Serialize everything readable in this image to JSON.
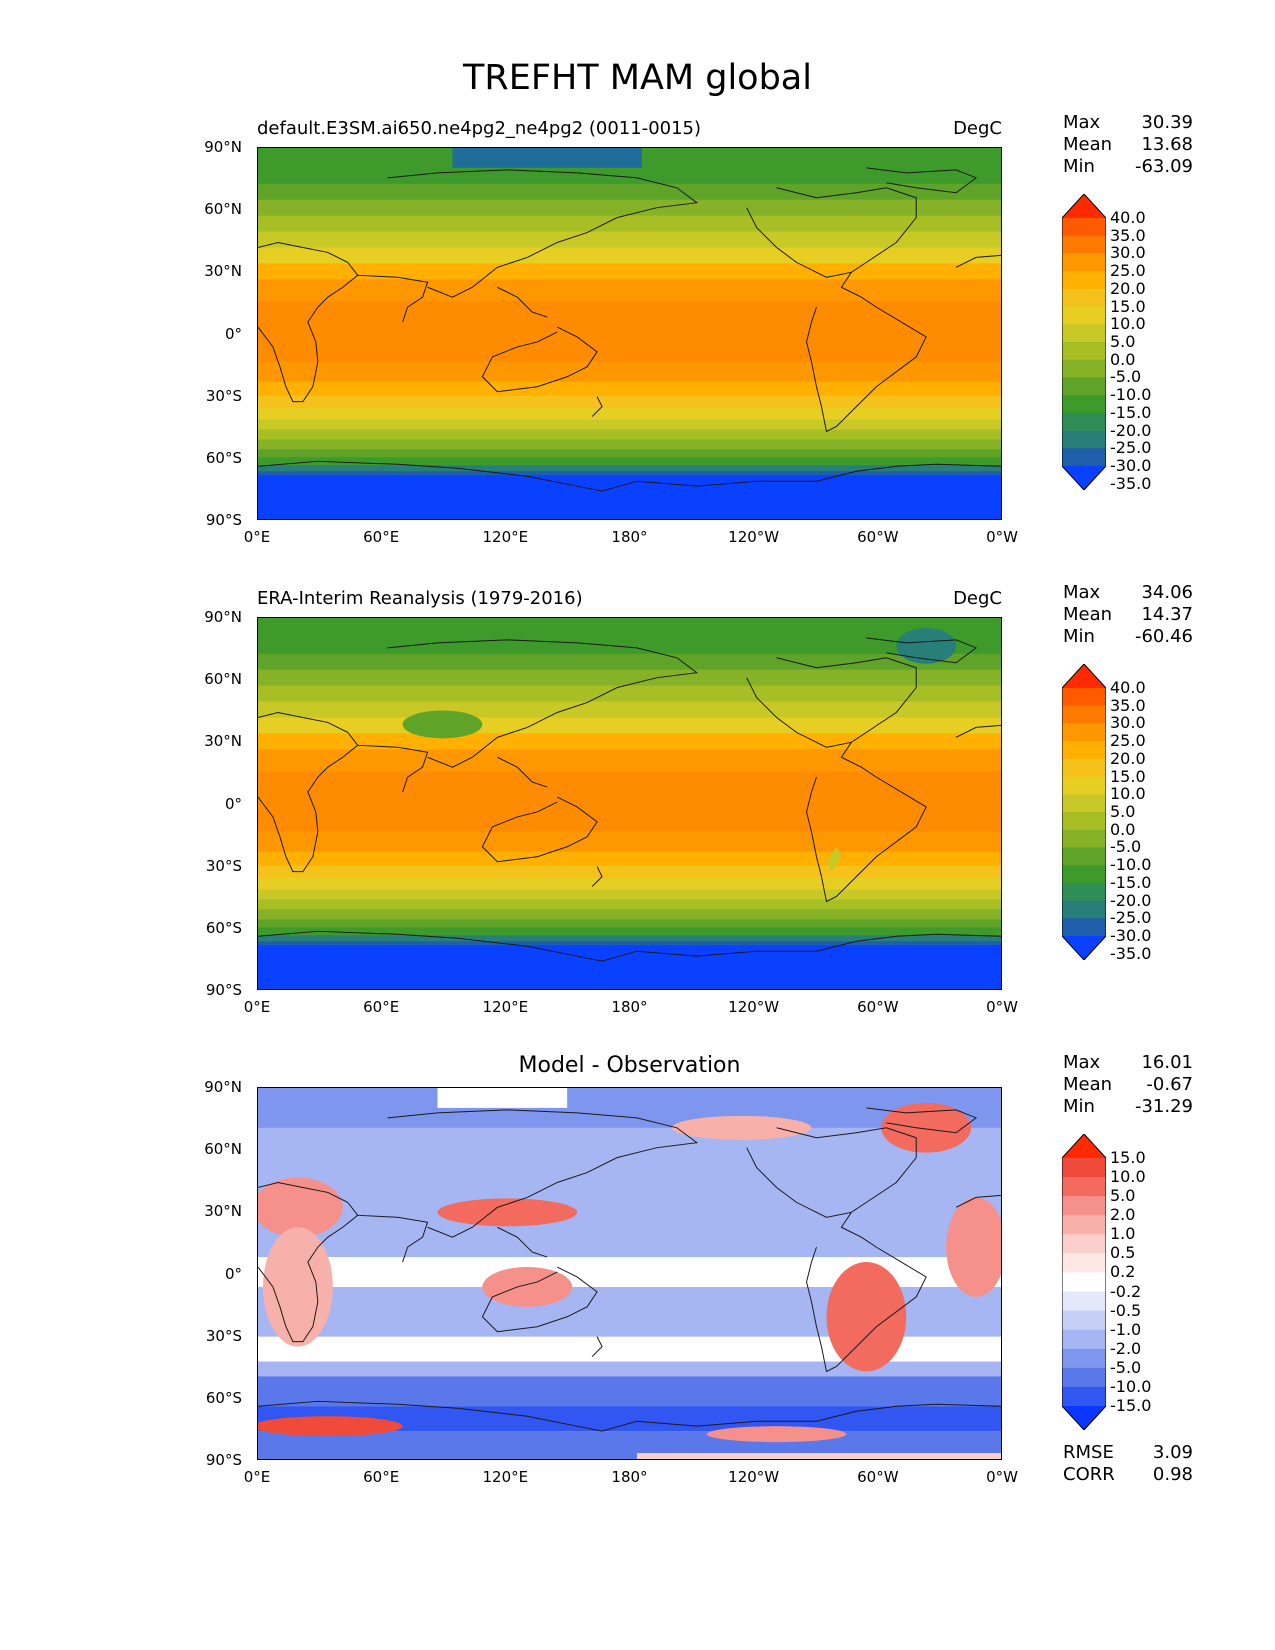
{
  "title": "TREFHT MAM global",
  "axes": {
    "lat_ticks": [
      "90°N",
      "60°N",
      "30°N",
      "0°",
      "30°S",
      "60°S",
      "90°S"
    ],
    "lon_ticks": [
      "0°E",
      "60°E",
      "120°E",
      "180°",
      "120°W",
      "60°W",
      "0°W"
    ]
  },
  "panels": [
    {
      "title_left": "default.E3SM.ai650.ne4pg2_ne4pg2 (0011-0015)",
      "units": "DegC",
      "stats": {
        "max_label": "Max",
        "max": "30.39",
        "mean_label": "Mean",
        "mean": "13.68",
        "min_label": "Min",
        "min": "-63.09"
      },
      "colorbar": {
        "labels": [
          "40.0",
          "35.0",
          "30.0",
          "25.0",
          "20.0",
          "15.0",
          "10.0",
          "5.0",
          "0.0",
          "-5.0",
          "-10.0",
          "-15.0",
          "-20.0",
          "-25.0",
          "-30.0",
          "-35.0"
        ],
        "colors": [
          "#ff2a00",
          "#ff5a00",
          "#ff7a00",
          "#ff9800",
          "#ffb000",
          "#f5c21b",
          "#e6ce23",
          "#c8c827",
          "#a8be25",
          "#86b227",
          "#5fa428",
          "#3d9a2b",
          "#2f8e55",
          "#287e79",
          "#1f5ea8",
          "#0a40ff"
        ]
      }
    },
    {
      "title_left": "ERA-Interim Reanalysis (1979-2016)",
      "units": "DegC",
      "stats": {
        "max_label": "Max",
        "max": "34.06",
        "mean_label": "Mean",
        "mean": "14.37",
        "min_label": "Min",
        "min": "-60.46"
      },
      "colorbar": {
        "labels": [
          "40.0",
          "35.0",
          "30.0",
          "25.0",
          "20.0",
          "15.0",
          "10.0",
          "5.0",
          "0.0",
          "-5.0",
          "-10.0",
          "-15.0",
          "-20.0",
          "-25.0",
          "-30.0",
          "-35.0"
        ],
        "colors": [
          "#ff2a00",
          "#ff5a00",
          "#ff7a00",
          "#ff9800",
          "#ffb000",
          "#f5c21b",
          "#e6ce23",
          "#c8c827",
          "#a8be25",
          "#86b227",
          "#5fa428",
          "#3d9a2b",
          "#2f8e55",
          "#287e79",
          "#1f5ea8",
          "#0a40ff"
        ]
      }
    },
    {
      "title_center": "Model - Observation",
      "stats": {
        "max_label": "Max",
        "max": "16.01",
        "mean_label": "Mean",
        "mean": "-0.67",
        "min_label": "Min",
        "min": "-31.29"
      },
      "colorbar": {
        "labels": [
          "15.0",
          "10.0",
          "5.0",
          "2.0",
          "1.0",
          "0.5",
          "0.2",
          "-0.2",
          "-0.5",
          "-1.0",
          "-2.0",
          "-5.0",
          "-10.0",
          "-15.0"
        ],
        "colors": [
          "#ff2a00",
          "#f04a3a",
          "#f26b5e",
          "#f5908a",
          "#f8b0ab",
          "#fbcfcc",
          "#fde8e6",
          "#ffffff",
          "#e3e8fb",
          "#c6d0f7",
          "#a6b6f2",
          "#7f96ee",
          "#5a78ea",
          "#3256f2",
          "#0a36ff"
        ]
      },
      "metrics": {
        "rmse_label": "RMSE",
        "rmse": "3.09",
        "corr_label": "CORR",
        "corr": "0.98"
      }
    }
  ]
}
